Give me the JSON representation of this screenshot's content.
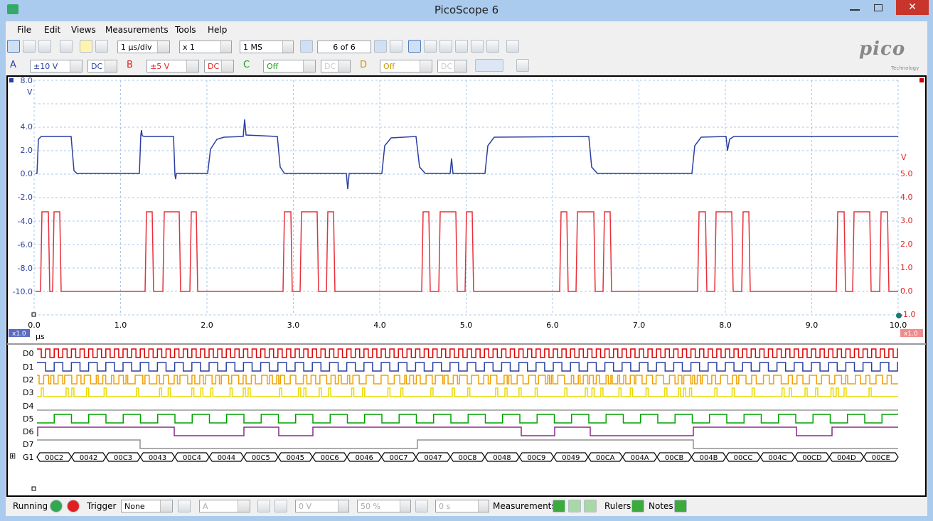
{
  "window": {
    "title": "PicoScope 6"
  },
  "menu": [
    "File",
    "Edit",
    "Views",
    "Measurements",
    "Tools",
    "Help"
  ],
  "toolbar": {
    "timebase": "1 µs/div",
    "zoom": "x 1",
    "samples": "1 MS",
    "buffer": "6 of 6"
  },
  "logo": {
    "brand": "pico",
    "tagline": "Technology"
  },
  "channels": [
    {
      "letter": "A",
      "range": "±10 V",
      "coupling": "DC"
    },
    {
      "letter": "B",
      "range": "±5 V",
      "coupling": "DC"
    },
    {
      "letter": "C",
      "range": "Off",
      "coupling": "DC"
    },
    {
      "letter": "D",
      "range": "Off",
      "coupling": "DC"
    }
  ],
  "scope": {
    "left_axis": {
      "unit": "V",
      "ticks": [
        "8.0",
        "4.0",
        "2.0",
        "0.0",
        "-2.0",
        "-4.0",
        "-6.0",
        "-8.0",
        "-10.0"
      ]
    },
    "right_axis": {
      "unit": "V",
      "ticks": [
        "5.0",
        "4.0",
        "3.0",
        "2.0",
        "1.0",
        "0.0",
        "-1.0"
      ]
    },
    "x_axis": {
      "unit": "µs",
      "ticks": [
        "0.0",
        "1.0",
        "2.0",
        "3.0",
        "4.0",
        "5.0",
        "6.0",
        "7.0",
        "8.0",
        "9.0",
        "10.0"
      ]
    },
    "left_zoom": "x1.0",
    "right_zoom": "x1.0"
  },
  "digital": {
    "channels": [
      "D0",
      "D1",
      "D2",
      "D3",
      "D4",
      "D5",
      "D6",
      "D7",
      "G1"
    ],
    "bus_values": [
      "00C2",
      "0042",
      "00C3",
      "0043",
      "00C4",
      "0044",
      "00C5",
      "0045",
      "00C6",
      "0046",
      "00C7",
      "0047",
      "00C8",
      "0048",
      "00C9",
      "0049",
      "00CA",
      "004A",
      "00CB",
      "004B",
      "00CC",
      "004C",
      "00CD",
      "004D",
      "00CE"
    ]
  },
  "status": {
    "state": "Running",
    "trigger_label": "Trigger",
    "trigger_mode": "None",
    "trigger_source": "A",
    "threshold": "0 V",
    "position": "50 %",
    "delay": "0 s",
    "measurements": "Measurements",
    "rulers": "Rulers",
    "notes": "Notes"
  }
}
